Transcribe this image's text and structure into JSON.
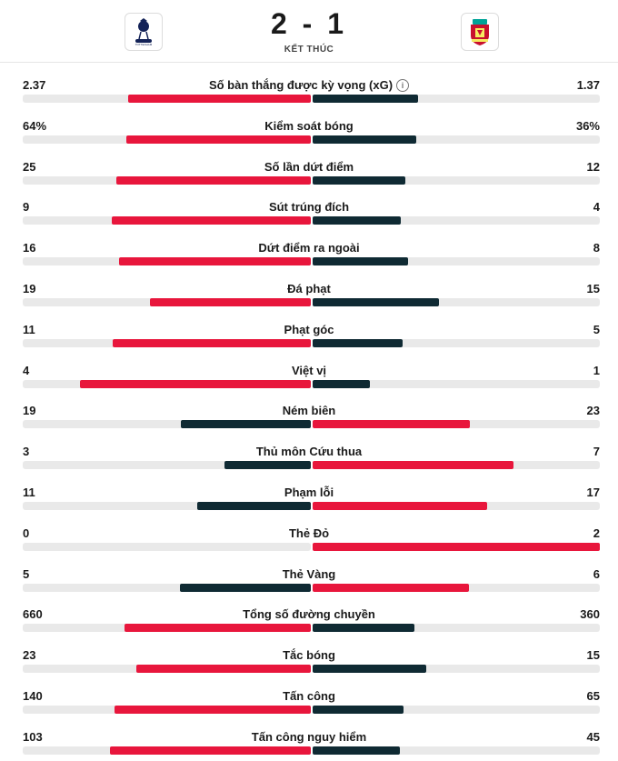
{
  "match": {
    "score": "2 - 1",
    "status": "KẾT THÚC",
    "home_badge": "tottenham-crest",
    "away_badge": "liverpool-crest"
  },
  "colors": {
    "leader": "#e8163c",
    "trailer": "#0f2a33",
    "track": "#e9e9e9"
  },
  "stats": [
    {
      "label": "Số bàn thắng được kỳ vọng (xG)",
      "home": "2.37",
      "away": "1.37",
      "info": true,
      "home_share": 0.634,
      "away_share": 0.366
    },
    {
      "label": "Kiểm soát bóng",
      "home": "64%",
      "away": "36%",
      "home_share": 0.64,
      "away_share": 0.36
    },
    {
      "label": "Số lần dứt điểm",
      "home": "25",
      "away": "12",
      "home_share": 0.676,
      "away_share": 0.324
    },
    {
      "label": "Sút trúng đích",
      "home": "9",
      "away": "4",
      "home_share": 0.692,
      "away_share": 0.308
    },
    {
      "label": "Dứt điểm ra ngoài",
      "home": "16",
      "away": "8",
      "home_share": 0.667,
      "away_share": 0.333
    },
    {
      "label": "Đá phạt",
      "home": "19",
      "away": "15",
      "home_share": 0.559,
      "away_share": 0.441
    },
    {
      "label": "Phạt góc",
      "home": "11",
      "away": "5",
      "home_share": 0.6875,
      "away_share": 0.3125
    },
    {
      "label": "Việt vị",
      "home": "4",
      "away": "1",
      "home_share": 0.8,
      "away_share": 0.2
    },
    {
      "label": "Ném biên",
      "home": "19",
      "away": "23",
      "home_share": 0.452,
      "away_share": 0.548
    },
    {
      "label": "Thủ môn Cứu thua",
      "home": "3",
      "away": "7",
      "home_share": 0.3,
      "away_share": 0.7
    },
    {
      "label": "Phạm lỗi",
      "home": "11",
      "away": "17",
      "home_share": 0.393,
      "away_share": 0.607
    },
    {
      "label": "Thẻ Đỏ",
      "home": "0",
      "away": "2",
      "home_share": 0,
      "away_share": 1
    },
    {
      "label": "Thẻ Vàng",
      "home": "5",
      "away": "6",
      "home_share": 0.455,
      "away_share": 0.545
    },
    {
      "label": "Tổng số đường chuyền",
      "home": "660",
      "away": "360",
      "home_share": 0.647,
      "away_share": 0.353
    },
    {
      "label": "Tắc bóng",
      "home": "23",
      "away": "15",
      "home_share": 0.605,
      "away_share": 0.395
    },
    {
      "label": "Tấn công",
      "home": "140",
      "away": "65",
      "home_share": 0.683,
      "away_share": 0.317
    },
    {
      "label": "Tấn công nguy hiểm",
      "home": "103",
      "away": "45",
      "home_share": 0.696,
      "away_share": 0.304
    }
  ]
}
